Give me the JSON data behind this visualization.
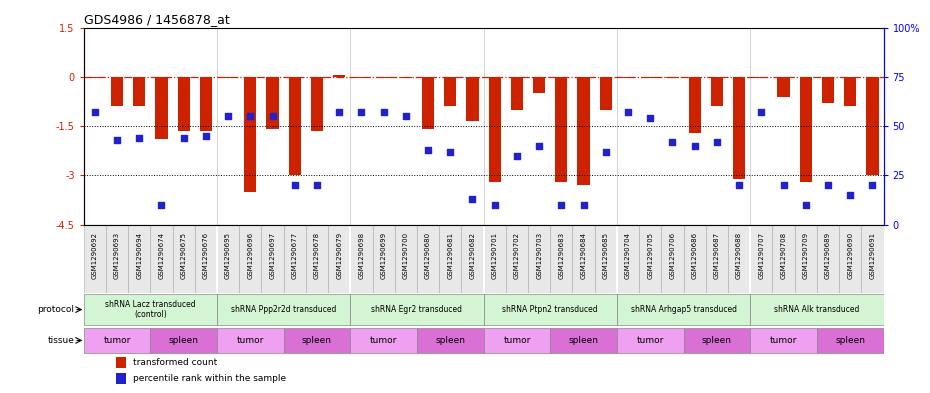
{
  "title": "GDS4986 / 1456878_at",
  "samples": [
    "GSM1290692",
    "GSM1290693",
    "GSM1290694",
    "GSM1290674",
    "GSM1290675",
    "GSM1290676",
    "GSM1290695",
    "GSM1290696",
    "GSM1290697",
    "GSM1290677",
    "GSM1290678",
    "GSM1290679",
    "GSM1290698",
    "GSM1290699",
    "GSM1290700",
    "GSM1290680",
    "GSM1290681",
    "GSM1290682",
    "GSM1290701",
    "GSM1290702",
    "GSM1290703",
    "GSM1290683",
    "GSM1290684",
    "GSM1290685",
    "GSM1290704",
    "GSM1290705",
    "GSM1290706",
    "GSM1290686",
    "GSM1290687",
    "GSM1290688",
    "GSM1290707",
    "GSM1290708",
    "GSM1290709",
    "GSM1290689",
    "GSM1290690",
    "GSM1290691"
  ],
  "bar_values": [
    -0.05,
    -0.9,
    -0.9,
    -1.9,
    -1.65,
    -1.65,
    -0.05,
    -3.5,
    -1.6,
    -3.0,
    -1.65,
    0.05,
    -0.05,
    -0.05,
    -0.05,
    -1.6,
    -0.9,
    -1.35,
    -3.2,
    -1.0,
    -0.5,
    -3.2,
    -3.3,
    -1.0,
    -0.05,
    -0.05,
    -0.05,
    -1.7,
    -0.9,
    -3.1,
    -0.05,
    -0.6,
    -3.2,
    -0.8,
    -0.9,
    -3.0
  ],
  "percentile_values": [
    57,
    43,
    44,
    10,
    44,
    45,
    55,
    55,
    55,
    20,
    20,
    57,
    57,
    57,
    55,
    38,
    37,
    13,
    10,
    35,
    40,
    10,
    10,
    37,
    57,
    54,
    42,
    40,
    42,
    20,
    57,
    20,
    10,
    20,
    15,
    20
  ],
  "protocols": [
    {
      "label": "shRNA Lacz transduced\n(control)",
      "start": 0,
      "end": 6,
      "color": "#d4f5d4"
    },
    {
      "label": "shRNA Ppp2r2d transduced",
      "start": 6,
      "end": 12,
      "color": "#d4f5d4"
    },
    {
      "label": "shRNA Egr2 transduced",
      "start": 12,
      "end": 18,
      "color": "#d4f5d4"
    },
    {
      "label": "shRNA Ptpn2 transduced",
      "start": 18,
      "end": 24,
      "color": "#d4f5d4"
    },
    {
      "label": "shRNA Arhgap5 transduced",
      "start": 24,
      "end": 30,
      "color": "#d4f5d4"
    },
    {
      "label": "shRNA Alk transduced",
      "start": 30,
      "end": 36,
      "color": "#d4f5d4"
    }
  ],
  "tissues": [
    {
      "label": "tumor",
      "start": 0,
      "end": 3,
      "color": "#f0a0f0"
    },
    {
      "label": "spleen",
      "start": 3,
      "end": 6,
      "color": "#da70d6"
    },
    {
      "label": "tumor",
      "start": 6,
      "end": 9,
      "color": "#f0a0f0"
    },
    {
      "label": "spleen",
      "start": 9,
      "end": 12,
      "color": "#da70d6"
    },
    {
      "label": "tumor",
      "start": 12,
      "end": 15,
      "color": "#f0a0f0"
    },
    {
      "label": "spleen",
      "start": 15,
      "end": 18,
      "color": "#da70d6"
    },
    {
      "label": "tumor",
      "start": 18,
      "end": 21,
      "color": "#f0a0f0"
    },
    {
      "label": "spleen",
      "start": 21,
      "end": 24,
      "color": "#da70d6"
    },
    {
      "label": "tumor",
      "start": 24,
      "end": 27,
      "color": "#f0a0f0"
    },
    {
      "label": "spleen",
      "start": 27,
      "end": 30,
      "color": "#da70d6"
    },
    {
      "label": "tumor",
      "start": 30,
      "end": 33,
      "color": "#f0a0f0"
    },
    {
      "label": "spleen",
      "start": 33,
      "end": 36,
      "color": "#da70d6"
    }
  ],
  "ylim_left": [
    -4.5,
    1.5
  ],
  "ylim_right": [
    0,
    100
  ],
  "yticks_left": [
    1.5,
    0,
    -1.5,
    -3,
    -4.5
  ],
  "yticks_right": [
    0,
    25,
    50,
    75,
    100
  ],
  "bar_color": "#cc2200",
  "dot_color": "#2222cc",
  "ref_line_y": 0,
  "dotted_lines": [
    -1.5,
    -3
  ],
  "background_color": "#ffffff",
  "group_boundaries": [
    5.5,
    11.5,
    17.5,
    23.5,
    29.5
  ]
}
